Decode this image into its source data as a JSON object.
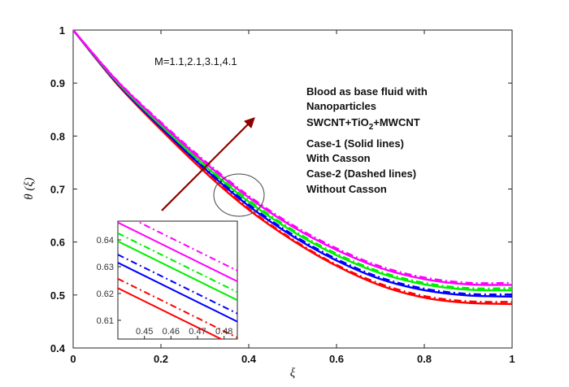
{
  "chart_data": {
    "type": "line",
    "xlabel": "ξ",
    "ylabel": "θ (ξ)",
    "xlim": [
      0,
      1
    ],
    "ylim": [
      0.4,
      1
    ],
    "x_ticks": [
      "0",
      "0.2",
      "0.4",
      "0.6",
      "0.8",
      "1"
    ],
    "y_ticks": [
      "0.4",
      "0.5",
      "0.6",
      "0.7",
      "0.8",
      "0.9",
      "1"
    ],
    "x": [
      0,
      0.1,
      0.2,
      0.3,
      0.4,
      0.5,
      0.6,
      0.7,
      0.8,
      0.9,
      1.0
    ],
    "series": [
      {
        "name": "M=1.1 Case-1 (Solid)",
        "color": "#ff0000",
        "dash": "solid",
        "values": [
          1.0,
          0.898,
          0.812,
          0.732,
          0.661,
          0.603,
          0.555,
          0.518,
          0.495,
          0.485,
          0.483
        ]
      },
      {
        "name": "M=1.1 Case-2 (Dashed)",
        "color": "#ff0000",
        "dash": "dashed",
        "values": [
          1.0,
          0.899,
          0.813,
          0.734,
          0.663,
          0.605,
          0.557,
          0.521,
          0.498,
          0.488,
          0.487
        ]
      },
      {
        "name": "M=2.1 Case-1 (Solid)",
        "color": "#0000ff",
        "dash": "solid",
        "values": [
          1.0,
          0.9,
          0.816,
          0.738,
          0.668,
          0.611,
          0.565,
          0.53,
          0.509,
          0.499,
          0.497
        ]
      },
      {
        "name": "M=2.1 Case-2 (Dashed)",
        "color": "#0000ff",
        "dash": "dashed",
        "values": [
          1.0,
          0.901,
          0.817,
          0.74,
          0.671,
          0.614,
          0.568,
          0.533,
          0.512,
          0.502,
          0.501
        ]
      },
      {
        "name": "M=3.1 Case-1 (Solid)",
        "color": "#00ee00",
        "dash": "solid",
        "values": [
          1.0,
          0.902,
          0.82,
          0.744,
          0.676,
          0.62,
          0.575,
          0.541,
          0.52,
          0.51,
          0.509
        ]
      },
      {
        "name": "M=3.1 Case-2 (Dashed)",
        "color": "#00ee00",
        "dash": "dashed",
        "values": [
          1.0,
          0.903,
          0.822,
          0.746,
          0.679,
          0.623,
          0.578,
          0.544,
          0.523,
          0.513,
          0.513
        ]
      },
      {
        "name": "M=4.1 Case-1 (Solid)",
        "color": "#ff00ff",
        "dash": "solid",
        "values": [
          1.0,
          0.904,
          0.824,
          0.75,
          0.684,
          0.629,
          0.585,
          0.551,
          0.53,
          0.52,
          0.519
        ]
      },
      {
        "name": "M=4.1 Case-2 (Dashed)",
        "color": "#ff00ff",
        "dash": "dashed",
        "values": [
          1.0,
          0.905,
          0.826,
          0.753,
          0.687,
          0.632,
          0.588,
          0.554,
          0.533,
          0.523,
          0.523
        ]
      }
    ],
    "inset": {
      "xlim": [
        0.44,
        0.485
      ],
      "ylim": [
        0.603,
        0.647
      ],
      "x_ticks": [
        "0.45",
        "0.46",
        "0.47",
        "0.48"
      ],
      "y_ticks": [
        "0.61",
        "0.62",
        "0.63",
        "0.64"
      ],
      "series_lines": [
        {
          "color": "#ff0000",
          "dash": "solid",
          "values_at_xlim": [
            0.622,
            0.6
          ]
        },
        {
          "color": "#ff0000",
          "dash": "dashed",
          "values_at_xlim": [
            0.6255,
            0.6035
          ]
        },
        {
          "color": "#0000ff",
          "dash": "solid",
          "values_at_xlim": [
            0.6315,
            0.6095
          ]
        },
        {
          "color": "#0000ff",
          "dash": "dashed",
          "values_at_xlim": [
            0.6345,
            0.6125
          ]
        },
        {
          "color": "#00ee00",
          "dash": "solid",
          "values_at_xlim": [
            0.6395,
            0.6175
          ]
        },
        {
          "color": "#00ee00",
          "dash": "dashed",
          "values_at_xlim": [
            0.6425,
            0.6205
          ]
        },
        {
          "color": "#ff00ff",
          "dash": "solid",
          "values_at_xlim": [
            0.6465,
            0.6245
          ]
        },
        {
          "color": "#ff00ff",
          "dash": "dashed",
          "values_at_xlim": [
            0.6505,
            0.6285
          ]
        }
      ]
    },
    "annotations": {
      "m_values": "M=1.1,2.1,3.1,4.1",
      "blood_line1": "Blood as base fluid with",
      "blood_line2": "Nanoparticles",
      "np_part1": "SWCNT+TiO",
      "np_sub": "2",
      "np_part2": "+MWCNT",
      "case1": "Case-1 (Solid lines)",
      "case1b": "With Casson",
      "case2": "Case-2 (Dashed lines)",
      "case2b": "Without Casson"
    },
    "arrow_color": "#8b0000"
  }
}
